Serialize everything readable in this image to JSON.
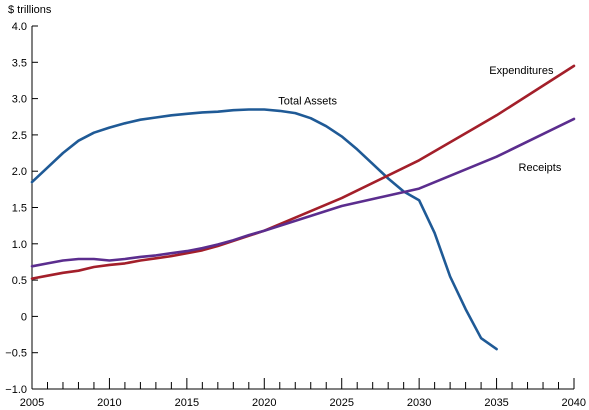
{
  "chart_data": {
    "type": "line",
    "ylabel": "$ trillions",
    "xlim": [
      2005,
      2040
    ],
    "ylim": [
      -1.0,
      4.0
    ],
    "x_ticks": [
      2005,
      2010,
      2015,
      2020,
      2025,
      2030,
      2035,
      2040
    ],
    "x_tick_labels": [
      "2005",
      "2010",
      "2015",
      "2020",
      "2025",
      "2030",
      "2035",
      "2040"
    ],
    "y_ticks": [
      -1.0,
      -0.5,
      0,
      0.5,
      1.0,
      1.5,
      2.0,
      2.5,
      3.0,
      3.5,
      4.0
    ],
    "y_tick_labels": [
      "−1.0",
      "−0.5",
      "0",
      "0.5",
      "1.0",
      "1.5",
      "2.0",
      "2.5",
      "3.0",
      "3.5",
      "4.0"
    ],
    "grid": false,
    "legend": "none",
    "series": [
      {
        "name": "Total Assets",
        "color": "#1f5a96",
        "x": [
          2005,
          2006,
          2007,
          2008,
          2009,
          2010,
          2011,
          2012,
          2013,
          2014,
          2015,
          2016,
          2017,
          2018,
          2019,
          2020,
          2021,
          2022,
          2023,
          2024,
          2025,
          2026,
          2027,
          2028,
          2029,
          2030,
          2031,
          2032,
          2033,
          2034,
          2035
        ],
        "values": [
          1.85,
          2.05,
          2.25,
          2.42,
          2.53,
          2.6,
          2.66,
          2.71,
          2.74,
          2.77,
          2.79,
          2.81,
          2.82,
          2.84,
          2.85,
          2.85,
          2.83,
          2.8,
          2.73,
          2.62,
          2.48,
          2.3,
          2.1,
          1.9,
          1.72,
          1.6,
          1.15,
          0.55,
          0.1,
          -0.3,
          -0.45
        ]
      },
      {
        "name": "Expenditures",
        "color": "#a31f2a",
        "x": [
          2005,
          2006,
          2007,
          2008,
          2009,
          2010,
          2011,
          2012,
          2013,
          2014,
          2015,
          2016,
          2017,
          2018,
          2019,
          2020,
          2025,
          2030,
          2035,
          2040
        ],
        "values": [
          0.52,
          0.56,
          0.6,
          0.63,
          0.68,
          0.71,
          0.73,
          0.77,
          0.8,
          0.83,
          0.87,
          0.91,
          0.97,
          1.04,
          1.11,
          1.18,
          1.63,
          2.15,
          2.77,
          3.45
        ]
      },
      {
        "name": "Receipts",
        "color": "#5b2d8e",
        "x": [
          2005,
          2006,
          2007,
          2008,
          2009,
          2010,
          2011,
          2012,
          2013,
          2014,
          2015,
          2016,
          2017,
          2018,
          2019,
          2020,
          2025,
          2030,
          2035,
          2040
        ],
        "values": [
          0.69,
          0.73,
          0.77,
          0.79,
          0.79,
          0.77,
          0.79,
          0.82,
          0.84,
          0.87,
          0.9,
          0.94,
          0.99,
          1.05,
          1.12,
          1.18,
          1.52,
          1.76,
          2.2,
          2.72
        ]
      }
    ],
    "annotations": [
      {
        "series": "Total Assets",
        "text": "Total Assets",
        "anchor_x": 2022.8,
        "anchor_y": 2.92
      },
      {
        "series": "Expenditures",
        "text": "Expenditures",
        "anchor_x": 2036.6,
        "anchor_y": 3.34
      },
      {
        "series": "Receipts",
        "text": "Receipts",
        "anchor_x": 2037.8,
        "anchor_y": 2.0
      }
    ]
  }
}
